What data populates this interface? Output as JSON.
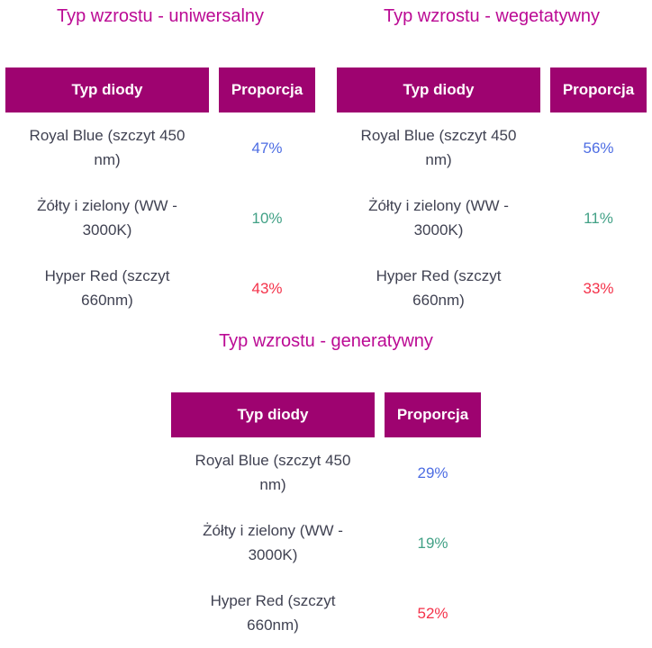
{
  "colors": {
    "title": "#bb0a94",
    "header_bg": "#9e0370",
    "header_text": "#ffffff",
    "body_text": "#404252",
    "blue": "#4d6de3",
    "green": "#42a186",
    "red": "#f4324a",
    "page_bg": "#ffffff"
  },
  "columns": {
    "diode": "Typ diody",
    "proportion": "Proporcja"
  },
  "tables": [
    {
      "title": "Typ wzrostu - uniwersalny",
      "rows": [
        {
          "diode": "Royal Blue (szczyt 450 nm)",
          "value": "47%",
          "color_key": "blue"
        },
        {
          "diode": "Żółty i zielony (WW - 3000K)",
          "value": "10%",
          "color_key": "green"
        },
        {
          "diode": "Hyper Red (szczyt 660nm)",
          "value": "43%",
          "color_key": "red"
        }
      ]
    },
    {
      "title": "Typ wzrostu - wegetatywny",
      "rows": [
        {
          "diode": "Royal Blue (szczyt 450 nm)",
          "value": "56%",
          "color_key": "blue"
        },
        {
          "diode": "Żółty i zielony (WW - 3000K)",
          "value": "11%",
          "color_key": "green"
        },
        {
          "diode": "Hyper Red (szczyt 660nm)",
          "value": "33%",
          "color_key": "red"
        }
      ]
    },
    {
      "title": "Typ wzrostu - generatywny",
      "rows": [
        {
          "diode": "Royal Blue (szczyt 450 nm)",
          "value": "29%",
          "color_key": "blue"
        },
        {
          "diode": "Żółty i zielony (WW - 3000K)",
          "value": "19%",
          "color_key": "green"
        },
        {
          "diode": "Hyper Red (szczyt 660nm)",
          "value": "52%",
          "color_key": "red"
        }
      ]
    }
  ]
}
